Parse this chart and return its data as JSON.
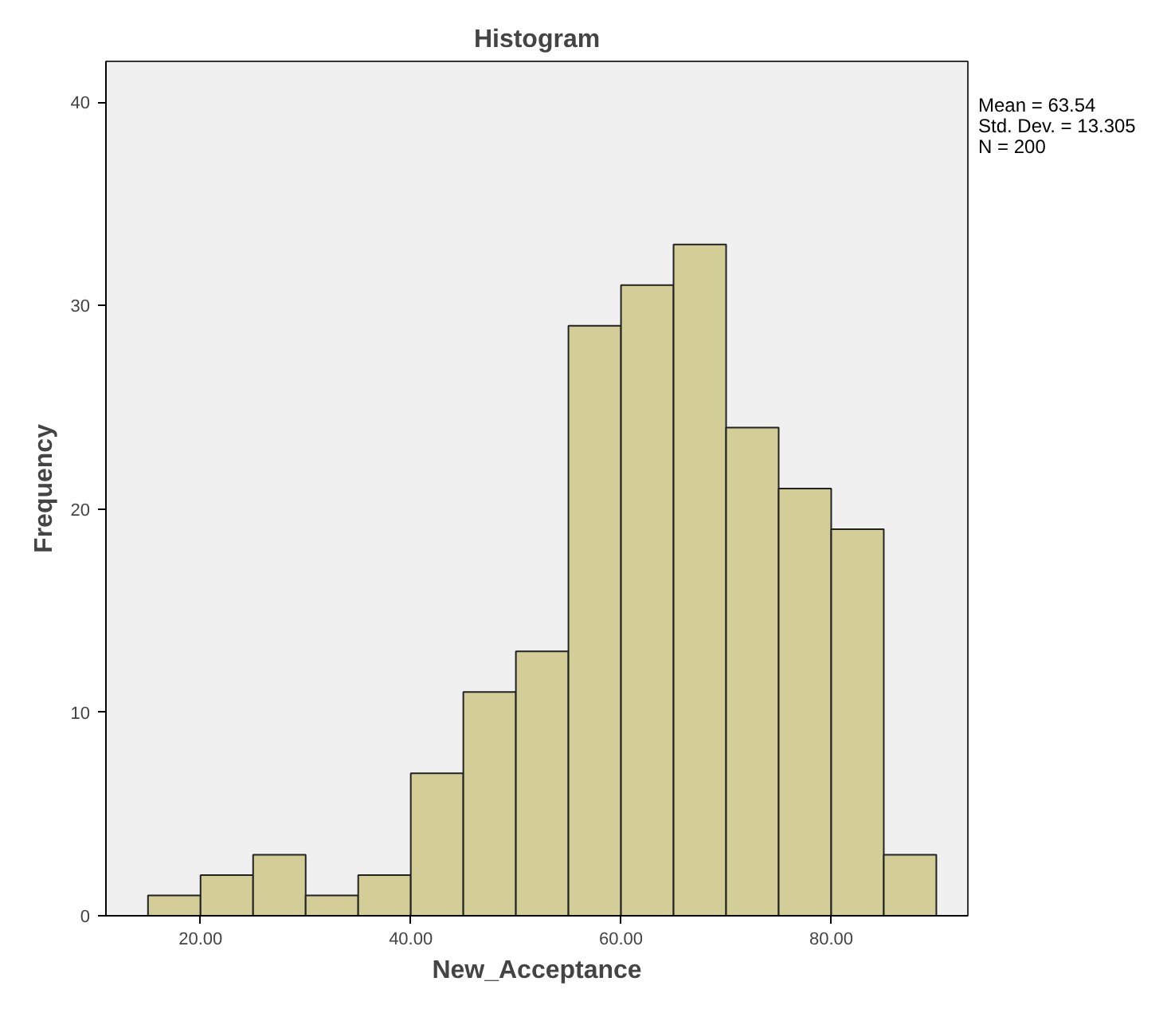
{
  "chart_data": {
    "type": "histogram",
    "title": "Histogram",
    "xlabel": "New_Acceptance",
    "ylabel": "Frequency",
    "bins": [
      15,
      20,
      25,
      30,
      35,
      40,
      45,
      50,
      55,
      60,
      65,
      70,
      75,
      80,
      85,
      90
    ],
    "values": [
      1,
      2,
      3,
      1,
      2,
      7,
      11,
      13,
      29,
      31,
      33,
      24,
      21,
      19,
      3
    ],
    "color": "#d3ce97",
    "xlim": [
      11,
      93
    ],
    "xticks": [
      {
        "value": 20,
        "label": "20.00"
      },
      {
        "value": 40,
        "label": "40.00"
      },
      {
        "value": 60,
        "label": "60.00"
      },
      {
        "value": 80,
        "label": "80.00"
      }
    ],
    "ylim": [
      0,
      42
    ],
    "yticks": [
      0,
      10,
      20,
      30,
      40
    ],
    "grid": false,
    "annotations": [
      "Mean = 63.54",
      "Std. Dev. = 13.305",
      "N = 200"
    ]
  }
}
